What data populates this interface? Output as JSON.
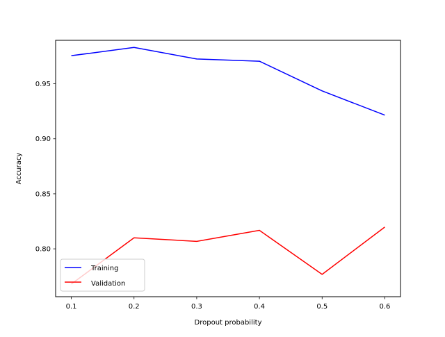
{
  "chart_data": {
    "type": "line",
    "title": "",
    "xlabel": "Dropout probability",
    "ylabel": "Accuracy",
    "x": [
      0.1,
      0.2,
      0.3,
      0.4,
      0.5,
      0.6
    ],
    "xlim": [
      0.075,
      0.625
    ],
    "ylim": [
      0.7565,
      0.9895
    ],
    "xticks": [
      0.1,
      0.2,
      0.3,
      0.4,
      0.5,
      0.6
    ],
    "xtick_labels": [
      "0.1",
      "0.2",
      "0.3",
      "0.4",
      "0.5",
      "0.6"
    ],
    "yticks": [
      0.8,
      0.85,
      0.9,
      0.95
    ],
    "ytick_labels": [
      "0.80",
      "0.85",
      "0.90",
      "0.95"
    ],
    "grid": false,
    "legend_position": "lower-left",
    "series": [
      {
        "name": "Training",
        "color": "#0000ff",
        "values": [
          0.9755,
          0.983,
          0.9725,
          0.9705,
          0.9435,
          0.9215
        ]
      },
      {
        "name": "Validation",
        "color": "#ff0000",
        "values": [
          0.768,
          0.81,
          0.8068,
          0.8168,
          0.7768,
          0.8198
        ]
      }
    ]
  }
}
